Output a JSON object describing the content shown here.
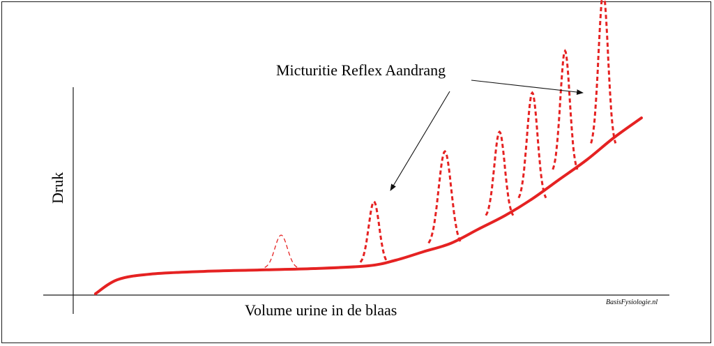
{
  "chart_data": {
    "type": "line",
    "title": "",
    "xlabel": "Volume urine in de blaas",
    "ylabel": "Druk",
    "grid": false,
    "legend": "none",
    "x_ticks": false,
    "y_ticks": false,
    "annotation": {
      "text": "Micturitie Reflex Aandrang",
      "points_to": [
        "reflex-wave-2",
        "reflex-wave-7"
      ]
    },
    "series": [
      {
        "style": "solid",
        "color": "#e52222",
        "x": [
          0,
          4,
          10,
          20,
          30,
          40,
          50,
          55,
          60,
          65,
          70,
          75,
          80,
          85,
          90,
          95,
          100
        ],
        "y": [
          0,
          5,
          7,
          8,
          8.5,
          9,
          10,
          12,
          15,
          18,
          23,
          28,
          34,
          41,
          48,
          56,
          63
        ]
      }
    ],
    "reflex_waves": [
      {
        "x": 34,
        "base": 9,
        "peak": 21,
        "width": 6,
        "style": "thin-dashed"
      },
      {
        "x": 51,
        "base": 10.5,
        "peak": 33,
        "width": 5,
        "style": "dashed"
      },
      {
        "x": 64,
        "base": 17,
        "peak": 51,
        "width": 6,
        "style": "dashed"
      },
      {
        "x": 74,
        "base": 27,
        "peak": 58,
        "width": 5,
        "style": "dashed"
      },
      {
        "x": 80,
        "base": 33,
        "peak": 72,
        "width": 5,
        "style": "dashed"
      },
      {
        "x": 86,
        "base": 43,
        "peak": 87,
        "width": 4.5,
        "style": "dashed"
      },
      {
        "x": 93,
        "base": 52,
        "peak": 108,
        "width": 4.5,
        "style": "dashed"
      }
    ]
  },
  "colors": {
    "curve": "#e52222",
    "axes": "#1a1a1a",
    "text": "#000000"
  },
  "credit": "BasisFysiologie.nl"
}
